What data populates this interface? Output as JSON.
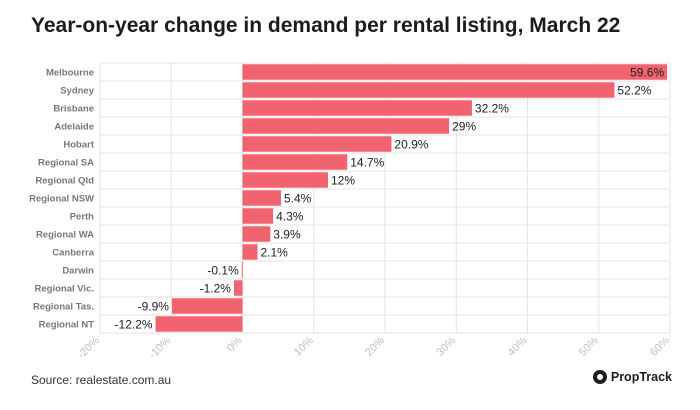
{
  "title": "Year-on-year change in demand per rental listing, March 22",
  "source": "Source: realestate.com.au",
  "brand": {
    "name": "PropTrack",
    "icon": "proptrack-logo-icon"
  },
  "colors": {
    "bar": "#f0636f",
    "grid": "#e3e3e3",
    "tick_text": "#c0c0c0",
    "category_text": "#777777",
    "value_text": "#222222"
  },
  "chart_data": {
    "type": "bar",
    "orientation": "horizontal",
    "categories": [
      "Melbourne",
      "Sydney",
      "Brisbane",
      "Adelaide",
      "Hobart",
      "Regional SA",
      "Regional Qld",
      "Regional NSW",
      "Perth",
      "Regional WA",
      "Canberra",
      "Darwin",
      "Regional Vic.",
      "Regional Tas.",
      "Regional NT"
    ],
    "values": [
      59.6,
      52.2,
      32.2,
      29,
      20.9,
      14.7,
      12,
      5.4,
      4.3,
      3.9,
      2.1,
      -0.1,
      -1.2,
      -9.9,
      -12.2
    ],
    "data_labels": [
      "59.6%",
      "52.2%",
      "32.2%",
      "29%",
      "20.9%",
      "14.7%",
      "12%",
      "5.4%",
      "4.3%",
      "3.9%",
      "2.1%",
      "-0.1%",
      "-1.2%",
      "-9.9%",
      "-12.2%"
    ],
    "xlim": [
      -20,
      60
    ],
    "xticks": [
      -20,
      -10,
      0,
      10,
      20,
      30,
      40,
      50,
      60
    ],
    "xtick_labels": [
      "-20%",
      "-10%",
      "0%",
      "10%",
      "20%",
      "30%",
      "40%",
      "50%",
      "60%"
    ],
    "grid": true,
    "legend": false
  }
}
